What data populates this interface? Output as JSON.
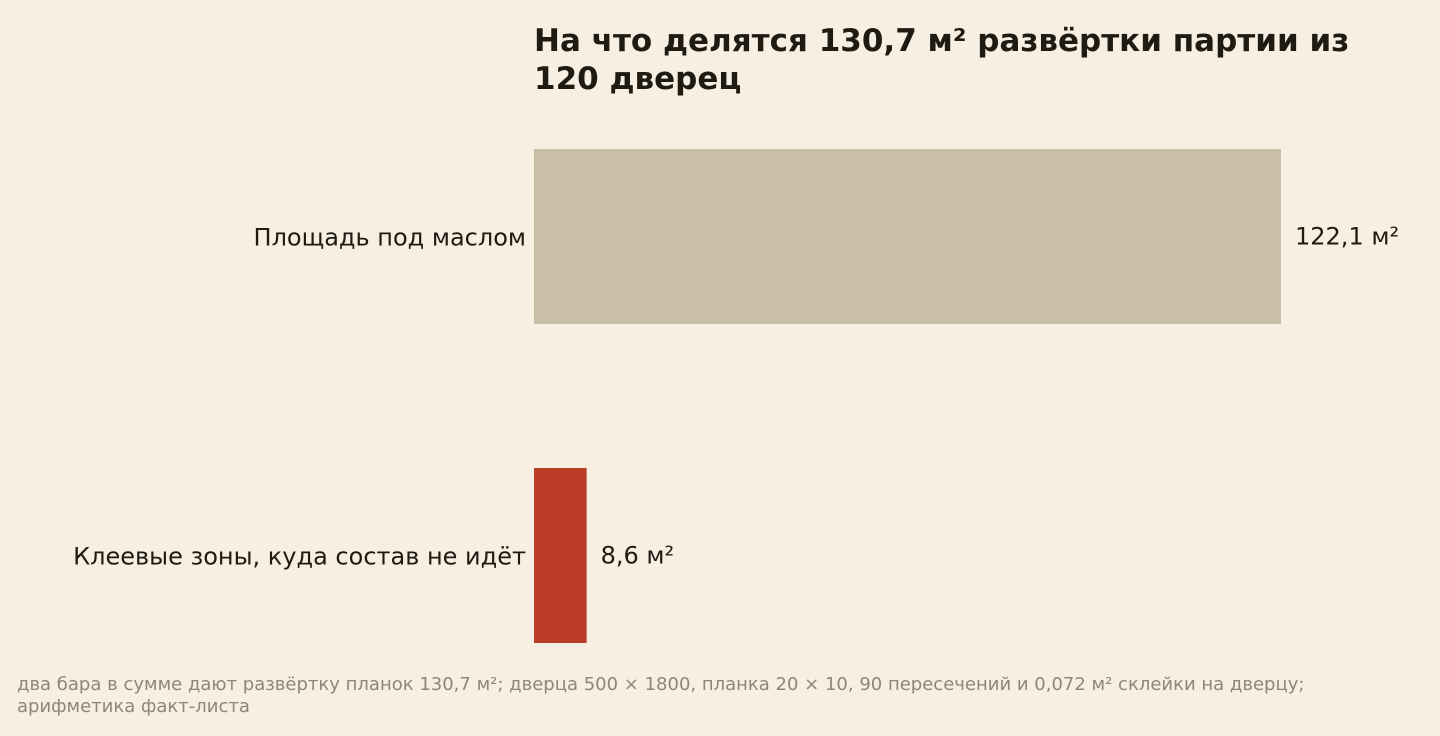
{
  "chart_data": {
    "type": "bar",
    "orientation": "horizontal",
    "title_lines": [
      "На что делятся 130,7 м² развёртки партии из",
      "120 дверец"
    ],
    "categories": [
      "Площадь под маслом",
      "Клеевые зоны, куда состав не идёт"
    ],
    "values": [
      122.1,
      8.6
    ],
    "value_labels": [
      "122,1 м²",
      "8,6 м²"
    ],
    "unit": "м²",
    "xlim": [
      0,
      122.1
    ],
    "grid": false,
    "legend": "none",
    "colors": [
      "#c8bfa6",
      "#bb3d27"
    ]
  },
  "footnote": "два бара в сумме дают развёртку планок 130,7 м²; дверца 500 × 1800, планка 20 × 10, 90 пересечений и 0,072 м² склейки на дверцу; арифметика факт-листа"
}
